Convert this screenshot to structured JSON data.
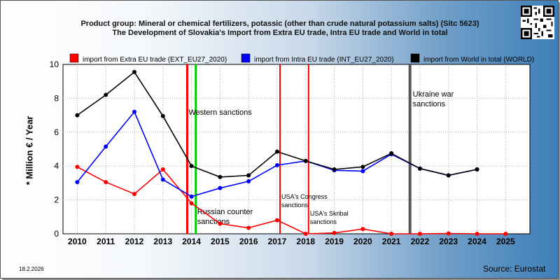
{
  "title_line1": "Product group: Mineral or chemical fertilizers, potassic (other than crude natural potassium salts) (Sitc 5623)",
  "title_line2": "The Development of Slovakia's Import from Extra EU trade, Intra EU trade and World in total",
  "date": "18.2.2026",
  "source": "Source: Eurostat",
  "colors": {
    "extra": "#ff0000",
    "intra": "#0000ff",
    "world": "#000000",
    "green": "#00cc00",
    "gray": "#555555"
  },
  "chart_data": {
    "type": "line",
    "ylabel": "* Million € / Year",
    "ylim": [
      0,
      10
    ],
    "yticks": [
      "0",
      "2",
      "4",
      "6",
      "8",
      "10"
    ],
    "x": [
      "2010",
      "2011",
      "2012",
      "2013",
      "2014",
      "2015",
      "2016",
      "2017",
      "2018",
      "2019",
      "2020",
      "2021",
      "2022",
      "2023",
      "2024",
      "2025"
    ],
    "grid": true,
    "legend_placement": "top",
    "series": [
      {
        "name": "import from Extra EU trade (EXT_EU27_2020)",
        "color": "#ff0000",
        "values": [
          3.95,
          3.05,
          2.35,
          3.8,
          1.8,
          0.6,
          0.35,
          0.8,
          0.0,
          0.05,
          0.28,
          0.0,
          0.0,
          0.02,
          0.0,
          0.0
        ]
      },
      {
        "name": "import from Intra EU trade (INT_EU27_2020)",
        "color": "#0000ff",
        "values": [
          3.05,
          5.15,
          7.2,
          3.2,
          2.2,
          2.7,
          3.1,
          4.05,
          4.3,
          3.75,
          3.7,
          4.7,
          3.85,
          3.45,
          3.8,
          null
        ]
      },
      {
        "name": "import from World in total (WORLD)",
        "color": "#000000",
        "values": [
          7.0,
          8.2,
          9.55,
          6.95,
          4.0,
          3.35,
          3.45,
          4.85,
          4.3,
          3.8,
          3.95,
          4.75,
          3.85,
          3.45,
          3.8,
          null
        ]
      }
    ],
    "annotations": [
      {
        "text": "Western sanctions",
        "x": 2013.85,
        "color": "#ff0000"
      },
      {
        "text": "",
        "x": 2014.15,
        "color": "#00cc00"
      },
      {
        "text": "Russian counter sanctions",
        "x": 2014.15
      },
      {
        "text": "USA's Congress sanctions",
        "x": 2017.1,
        "color": "#ff0000"
      },
      {
        "text": "USA's Skribal sanctions",
        "x": 2018.1,
        "color": "#ff0000"
      },
      {
        "text": "Ukraine war sanctions",
        "x": 2021.65,
        "color": "#555555"
      }
    ]
  }
}
